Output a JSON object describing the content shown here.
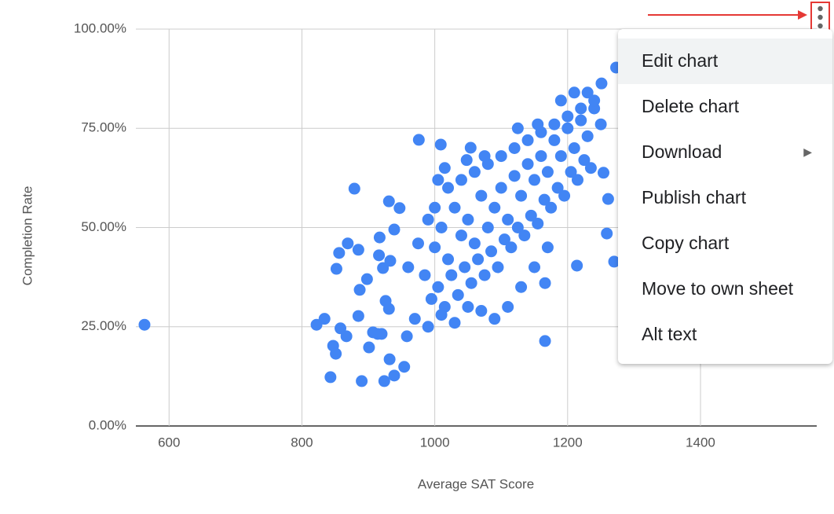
{
  "chart_data": {
    "type": "scatter",
    "x_label": "Average SAT Score",
    "y_label": "Completion Rate",
    "xlim": [
      550,
      1575
    ],
    "xticks": [
      600,
      800,
      1000,
      1200,
      1400
    ],
    "ylim": [
      0,
      100
    ],
    "yticks": [
      {
        "value": 0,
        "label": "0.00%"
      },
      {
        "value": 25,
        "label": "25.00%"
      },
      {
        "value": 50,
        "label": "50.00%"
      },
      {
        "value": 75,
        "label": "75.00%"
      },
      {
        "value": 100,
        "label": "100.00%"
      }
    ],
    "grid": true,
    "color": "#4285f4",
    "x": [
      563,
      843,
      890,
      924,
      822,
      834,
      847,
      851,
      858,
      856,
      869,
      852,
      879,
      885,
      887,
      898,
      885,
      867,
      901,
      907,
      914,
      920,
      917,
      916,
      922,
      931,
      933,
      939,
      926,
      931,
      932,
      939,
      954,
      947,
      958,
      976,
      1009,
      1054,
      1166,
      1166,
      1214,
      1251,
      1273,
      1259,
      1261,
      1270,
      1254,
      1000,
      1010,
      1020,
      1030,
      1040,
      1050,
      1060,
      1070,
      1080,
      1090,
      1100,
      1110,
      1120,
      1130,
      1140,
      1150,
      1160,
      1170,
      1180,
      1190,
      1200,
      1210,
      1220,
      1230,
      1240,
      1250,
      985,
      995,
      1005,
      1015,
      1025,
      1035,
      1045,
      1055,
      1065,
      1075,
      1085,
      1095,
      1105,
      1115,
      1125,
      1135,
      1145,
      1155,
      1165,
      1175,
      1185,
      1195,
      1205,
      1215,
      1225,
      1235,
      1000,
      1020,
      1040,
      1060,
      1080,
      1100,
      1120,
      1140,
      1160,
      1180,
      1200,
      1220,
      1240,
      970,
      990,
      1010,
      1030,
      1050,
      1070,
      1090,
      1110,
      1130,
      1150,
      1170,
      960,
      975,
      990,
      1005,
      1015,
      1048,
      1075,
      1125,
      1155,
      1190,
      1210,
      1230
    ],
    "values": [
      25.5,
      12.3,
      11.3,
      11.3,
      25.5,
      27,
      20.2,
      18.2,
      24.6,
      43.6,
      46,
      39.6,
      59.8,
      44.4,
      34.3,
      37,
      27.7,
      22.6,
      19.8,
      23.6,
      23.2,
      23.2,
      47.5,
      43,
      39.8,
      56.6,
      41.6,
      49.5,
      31.5,
      29.5,
      16.8,
      12.7,
      14.9,
      54.9,
      22.6,
      72.1,
      70.9,
      70.1,
      21.4,
      36,
      40.4,
      86.3,
      90.3,
      48.5,
      57.2,
      41.4,
      63.8,
      45,
      50,
      42,
      55,
      48,
      52,
      46,
      58,
      50,
      55,
      60,
      52,
      63,
      58,
      66,
      62,
      68,
      64,
      72,
      68,
      75,
      70,
      77,
      73,
      80,
      76,
      38,
      32,
      35,
      30,
      38,
      33,
      40,
      36,
      42,
      38,
      44,
      40,
      47,
      45,
      50,
      48,
      53,
      51,
      57,
      55,
      60,
      58,
      64,
      62,
      67,
      65,
      55,
      60,
      62,
      64,
      66,
      68,
      70,
      72,
      74,
      76,
      78,
      80,
      82,
      27,
      25,
      28,
      26,
      30,
      29,
      27,
      30,
      35,
      40,
      45,
      40,
      46,
      52,
      62,
      65,
      67,
      68,
      75,
      76,
      82,
      84,
      84
    ]
  },
  "menu": {
    "items": [
      "Edit chart",
      "Delete chart",
      "Download",
      "Publish chart",
      "Copy chart",
      "Move to own sheet",
      "Alt text"
    ]
  }
}
